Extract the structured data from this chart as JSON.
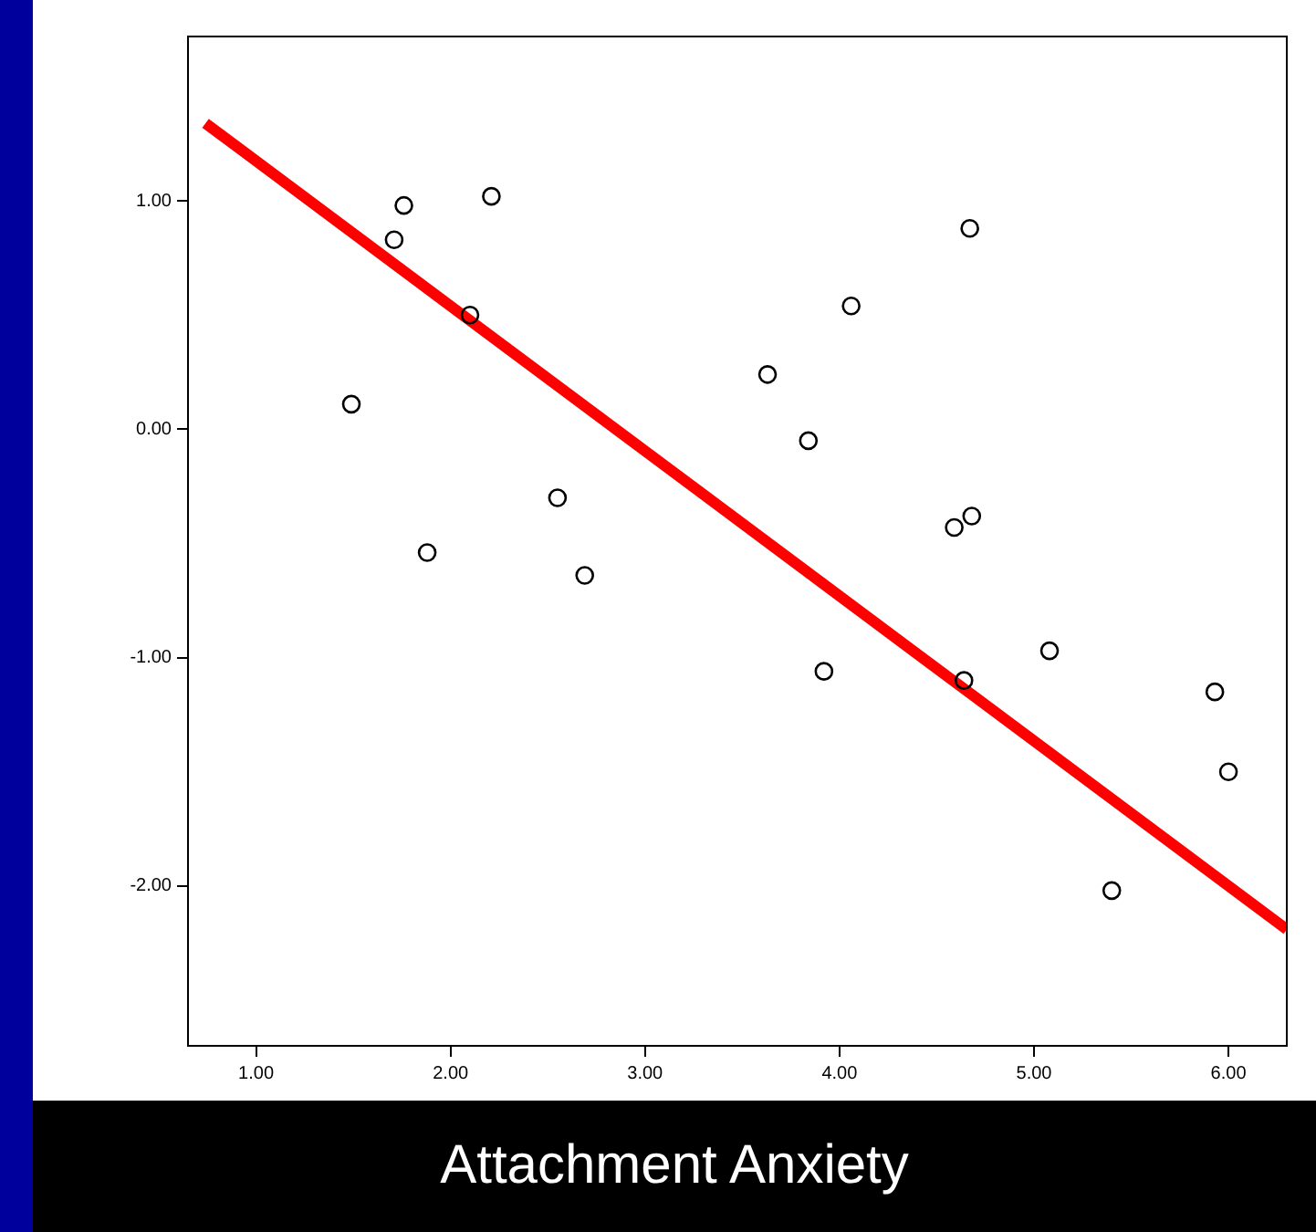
{
  "chart_data": {
    "type": "scatter",
    "xlabel": "Attachment Anxiety",
    "x": [
      1.49,
      1.71,
      1.76,
      1.88,
      2.1,
      2.21,
      2.55,
      2.69,
      3.63,
      3.84,
      3.92,
      4.06,
      4.59,
      4.67,
      4.68,
      4.64,
      5.08,
      5.4,
      5.93,
      6.0
    ],
    "series": [
      {
        "marker": "circle",
        "color": "#000000",
        "values": [
          0.11,
          0.83,
          0.98,
          -0.54,
          0.5,
          1.02,
          -0.3,
          -0.64,
          0.24,
          -0.05,
          -1.06,
          0.54,
          -0.43,
          0.88,
          -0.38,
          -1.1,
          -0.97,
          -2.02,
          -1.15,
          -1.5
        ]
      },
      {
        "type": "line",
        "marker": "none",
        "color": "#ff0000",
        "x": [
          0.74,
          6.3
        ],
        "values": [
          1.34,
          -2.19
        ]
      }
    ],
    "xlim": [
      0.65,
      6.3
    ],
    "ylim": [
      -2.7,
      1.72
    ],
    "xticks": [
      {
        "value": 1,
        "label": "1.00"
      },
      {
        "value": 2,
        "label": "2.00"
      },
      {
        "value": 3,
        "label": "3.00"
      },
      {
        "value": 4,
        "label": "4.00"
      },
      {
        "value": 5,
        "label": "5.00"
      },
      {
        "value": 6,
        "label": "6.00"
      }
    ],
    "yticks": [
      {
        "value": -2,
        "label": "-2.00"
      },
      {
        "value": -1,
        "label": "-1.00"
      },
      {
        "value": 0,
        "label": "0.00"
      },
      {
        "value": 1,
        "label": "1.00"
      }
    ],
    "grid": false,
    "legend": false
  }
}
